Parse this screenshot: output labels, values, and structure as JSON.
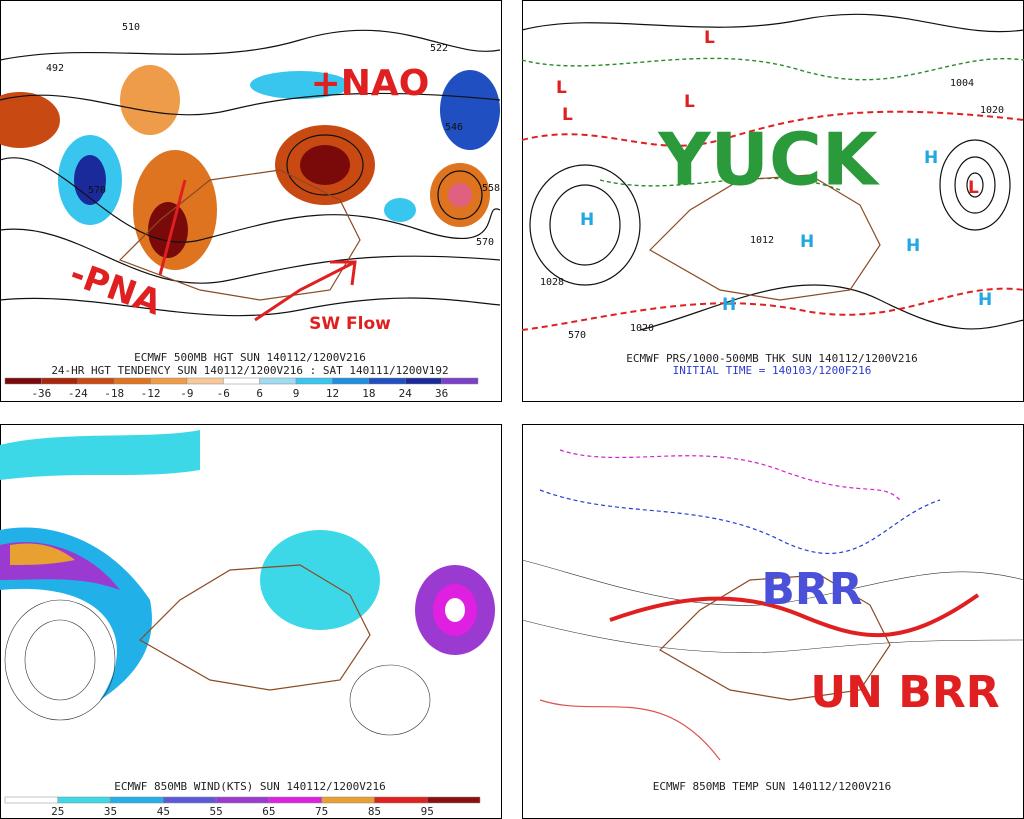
{
  "panels": [
    {
      "captions": [
        "ECMWF 500MB HGT SUN 140112/1200V216",
        "24-HR HGT TENDENCY SUN 140112/1200V216 : SAT 140111/1200V192"
      ],
      "annotations": [
        "+NAO",
        "-PNA",
        "SW Flow"
      ],
      "contour_labels": [
        510,
        492,
        522,
        546,
        570,
        558,
        570
      ],
      "colorbar": {
        "labels": [
          -36,
          -24,
          -18,
          -12,
          -9,
          -6,
          6,
          9,
          12,
          18,
          24,
          36
        ],
        "colors": [
          "#7a0a0a",
          "#a8250e",
          "#c84a12",
          "#de7420",
          "#ef9c4a",
          "#f6c89a",
          "#ffffff",
          "#9fdcf2",
          "#38c6ef",
          "#1f8fe0",
          "#1f4fc0",
          "#1a2a9a",
          "#7a40c8"
        ]
      }
    },
    {
      "captions": [
        "ECMWF PRS/1000-500MB THK SUN 140112/1200V216",
        "INITIAL TIME = 140103/1200F216"
      ],
      "annotations": [
        "YUCK"
      ],
      "contour_labels": [
        1028,
        1020,
        1020,
        1004,
        1012,
        570
      ],
      "highs": [
        "H",
        "H",
        "H",
        "H",
        "H",
        "H"
      ],
      "lows": [
        "L",
        "L",
        "L",
        "L",
        "L"
      ]
    },
    {
      "captions": [
        "ECMWF 850MB WIND(KTS) SUN 140112/1200V216"
      ],
      "colorbar": {
        "labels": [
          25,
          35,
          45,
          55,
          65,
          75,
          85,
          95
        ],
        "colors": [
          "#ffffff",
          "#3cd8e8",
          "#22b0e8",
          "#5a5ad8",
          "#9a3ad0",
          "#e020e0",
          "#e8a030",
          "#e02020",
          "#8a1010"
        ]
      }
    },
    {
      "captions": [
        "ECMWF 850MB TEMP SUN 140112/1200V216"
      ],
      "annotations": [
        "BRR",
        "UN BRR"
      ]
    }
  ]
}
